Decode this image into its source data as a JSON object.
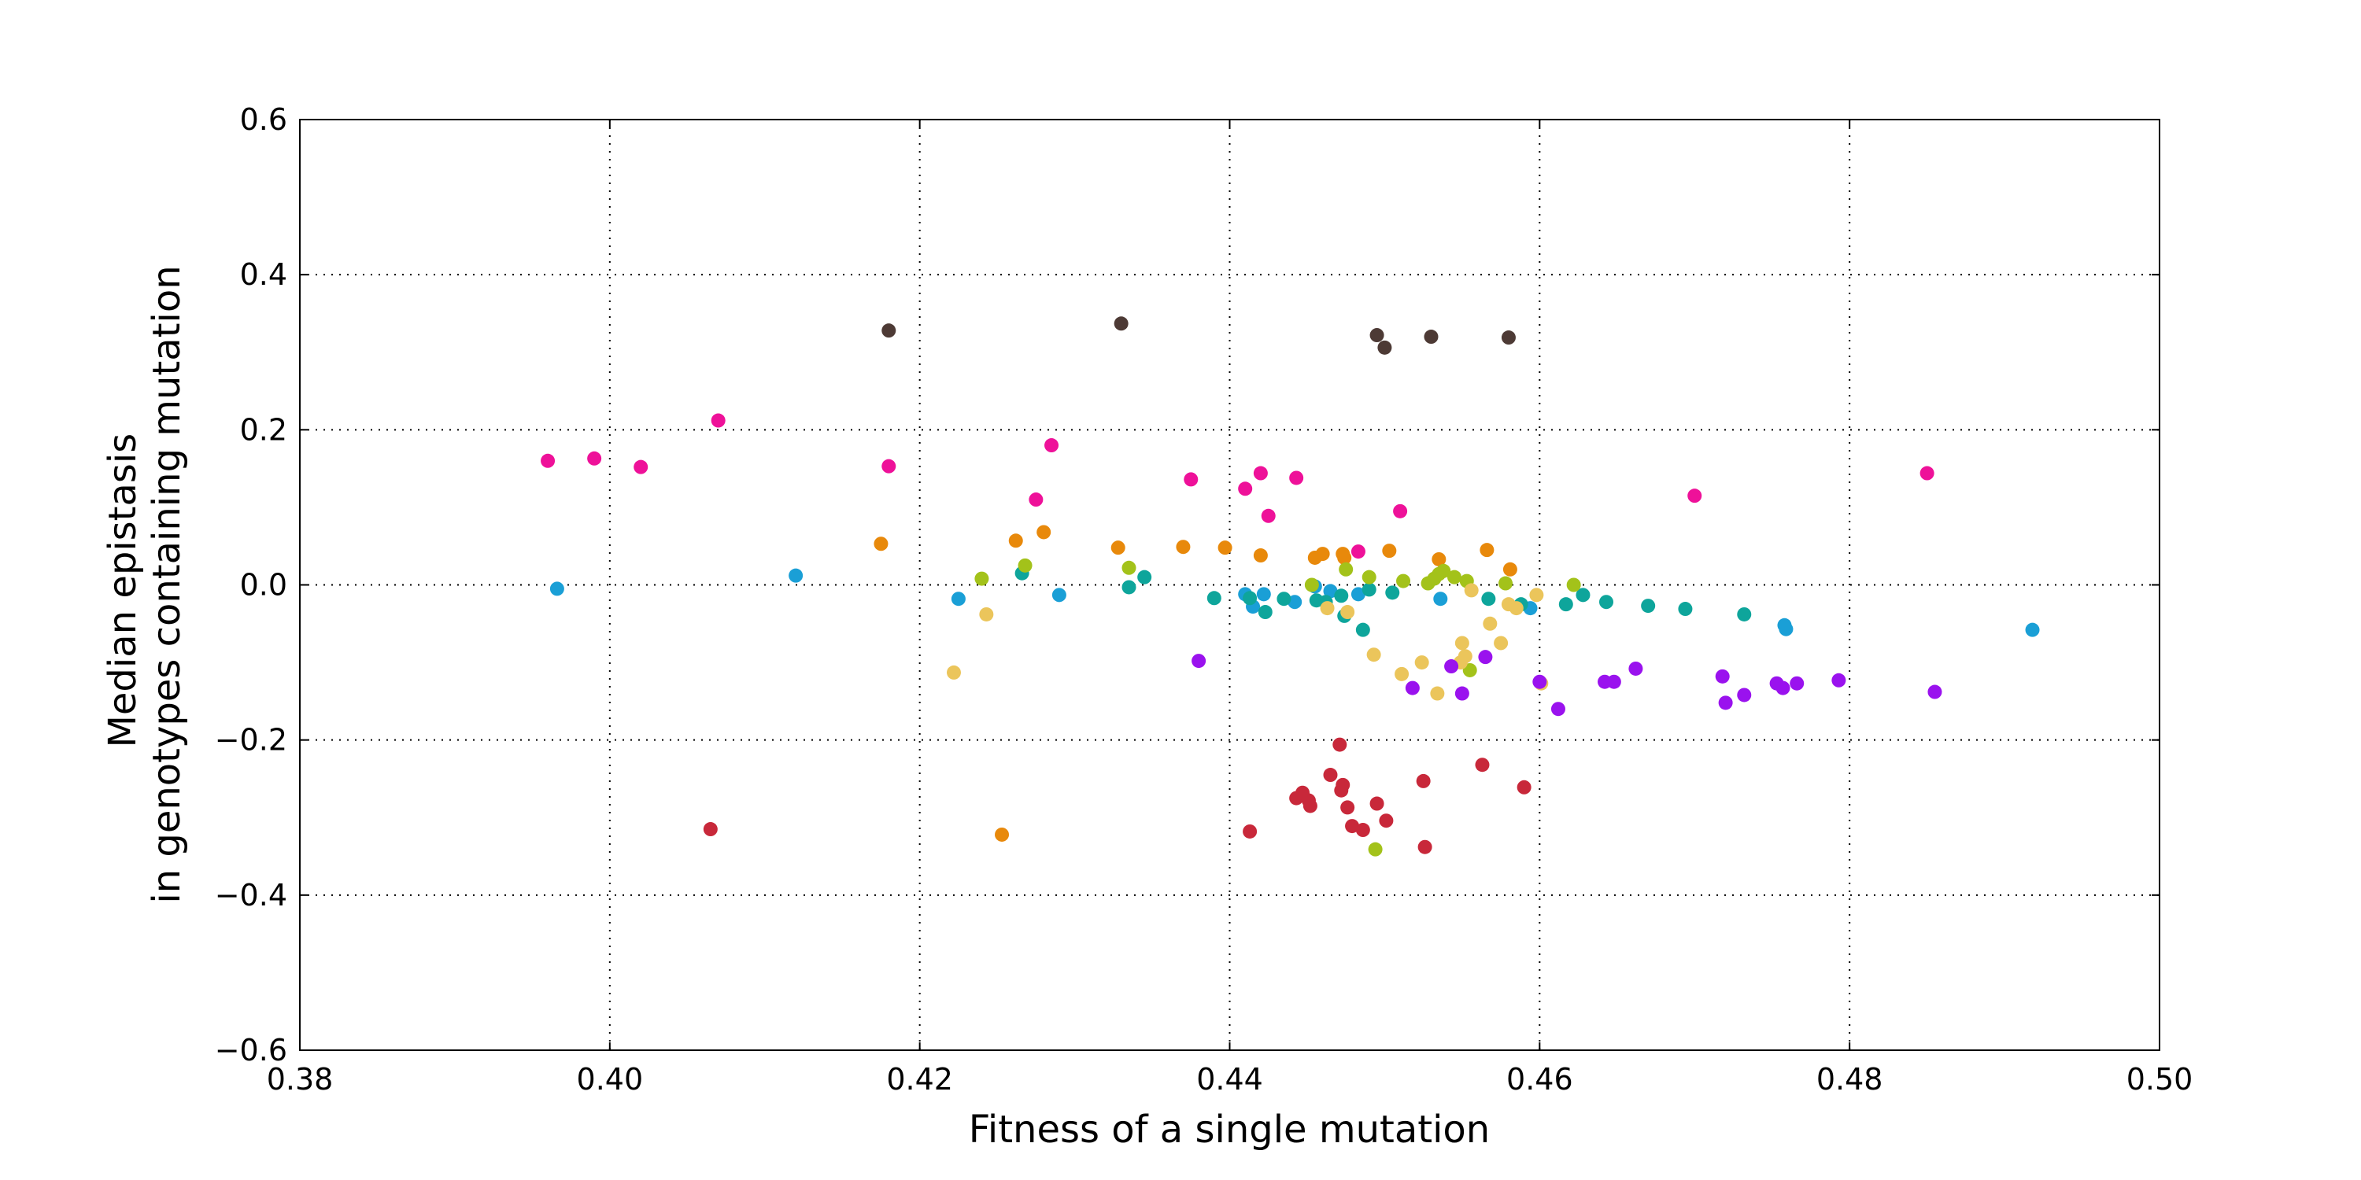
{
  "chart_data": {
    "type": "scatter",
    "title": "",
    "xlabel": "Fitness of a single mutation",
    "ylabel_lines": [
      "Median epistasis",
      "in genotypes containing mutation"
    ],
    "xlim": [
      0.38,
      0.5
    ],
    "ylim": [
      -0.6,
      0.6
    ],
    "x_ticks": [
      0.38,
      0.4,
      0.42,
      0.44,
      0.46,
      0.48,
      0.5
    ],
    "x_tick_labels": [
      "0.38",
      "0.40",
      "0.42",
      "0.44",
      "0.46",
      "0.48",
      "0.50"
    ],
    "y_ticks": [
      -0.6,
      -0.4,
      -0.2,
      0.0,
      0.2,
      0.4,
      0.6
    ],
    "y_tick_labels": [
      "−0.6",
      "−0.4",
      "−0.2",
      "0.0",
      "0.2",
      "0.4",
      "0.6"
    ],
    "grid": true,
    "legend": "none",
    "series": [
      {
        "color": "#4d3a35",
        "points": [
          [
            0.418,
            0.328
          ],
          [
            0.433,
            0.337
          ],
          [
            0.4495,
            0.322
          ],
          [
            0.45,
            0.306
          ],
          [
            0.453,
            0.32
          ],
          [
            0.458,
            0.319
          ]
        ]
      },
      {
        "color": "#ee1199",
        "points": [
          [
            0.396,
            0.16
          ],
          [
            0.399,
            0.163
          ],
          [
            0.402,
            0.152
          ],
          [
            0.407,
            0.212
          ],
          [
            0.418,
            0.153
          ],
          [
            0.4285,
            0.18
          ],
          [
            0.4275,
            0.11
          ],
          [
            0.4375,
            0.136
          ],
          [
            0.441,
            0.124
          ],
          [
            0.442,
            0.144
          ],
          [
            0.4425,
            0.089
          ],
          [
            0.4443,
            0.138
          ],
          [
            0.4483,
            0.043
          ],
          [
            0.451,
            0.095
          ],
          [
            0.47,
            0.115
          ],
          [
            0.485,
            0.144
          ]
        ]
      },
      {
        "color": "#e8890b",
        "points": [
          [
            0.4175,
            0.053
          ],
          [
            0.4262,
            0.057
          ],
          [
            0.428,
            0.068
          ],
          [
            0.4328,
            0.048
          ],
          [
            0.437,
            0.049
          ],
          [
            0.4397,
            0.048
          ],
          [
            0.442,
            0.038
          ],
          [
            0.4455,
            0.035
          ],
          [
            0.446,
            0.04
          ],
          [
            0.4473,
            0.04
          ],
          [
            0.4474,
            0.035
          ],
          [
            0.4503,
            0.044
          ],
          [
            0.4535,
            0.033
          ],
          [
            0.4566,
            0.045
          ],
          [
            0.4581,
            0.02
          ],
          [
            0.4253,
            -0.322
          ]
        ]
      },
      {
        "color": "#1a9fd6",
        "points": [
          [
            0.3966,
            -0.005
          ],
          [
            0.412,
            0.012
          ],
          [
            0.4225,
            -0.018
          ],
          [
            0.429,
            -0.013
          ],
          [
            0.441,
            -0.012
          ],
          [
            0.4415,
            -0.028
          ],
          [
            0.4422,
            -0.012
          ],
          [
            0.4442,
            -0.022
          ],
          [
            0.4455,
            -0.002
          ],
          [
            0.4465,
            -0.008
          ],
          [
            0.4483,
            -0.012
          ],
          [
            0.4536,
            -0.018
          ],
          [
            0.4594,
            -0.03
          ],
          [
            0.4758,
            -0.052
          ],
          [
            0.4759,
            -0.057
          ],
          [
            0.4918,
            -0.058
          ]
        ]
      },
      {
        "color": "#0ea59b",
        "points": [
          [
            0.4266,
            0.015
          ],
          [
            0.4335,
            -0.003
          ],
          [
            0.4345,
            0.01
          ],
          [
            0.439,
            -0.017
          ],
          [
            0.4413,
            -0.017
          ],
          [
            0.4423,
            -0.035
          ],
          [
            0.4435,
            -0.018
          ],
          [
            0.4456,
            -0.02
          ],
          [
            0.4462,
            -0.022
          ],
          [
            0.4472,
            -0.014
          ],
          [
            0.4474,
            -0.04
          ],
          [
            0.4486,
            -0.058
          ],
          [
            0.449,
            -0.006
          ],
          [
            0.4505,
            -0.01
          ],
          [
            0.4567,
            -0.018
          ],
          [
            0.4588,
            -0.025
          ],
          [
            0.4617,
            -0.025
          ],
          [
            0.4628,
            -0.013
          ],
          [
            0.4643,
            -0.022
          ],
          [
            0.467,
            -0.027
          ],
          [
            0.4694,
            -0.031
          ],
          [
            0.4732,
            -0.038
          ]
        ]
      },
      {
        "color": "#a3c21a",
        "points": [
          [
            0.424,
            0.008
          ],
          [
            0.4268,
            0.025
          ],
          [
            0.4335,
            0.022
          ],
          [
            0.4453,
            0.0
          ],
          [
            0.4475,
            0.02
          ],
          [
            0.449,
            0.01
          ],
          [
            0.4512,
            0.005
          ],
          [
            0.4528,
            0.002
          ],
          [
            0.4532,
            0.008
          ],
          [
            0.4535,
            0.014
          ],
          [
            0.4538,
            0.018
          ],
          [
            0.4545,
            0.01
          ],
          [
            0.4553,
            0.005
          ],
          [
            0.4578,
            0.002
          ],
          [
            0.4622,
            0.0
          ],
          [
            0.4555,
            -0.11
          ],
          [
            0.4494,
            -0.341
          ]
        ]
      },
      {
        "color": "#ebc55b",
        "points": [
          [
            0.4222,
            -0.113
          ],
          [
            0.4243,
            -0.038
          ],
          [
            0.4463,
            -0.03
          ],
          [
            0.4476,
            -0.035
          ],
          [
            0.4493,
            -0.09
          ],
          [
            0.4511,
            -0.115
          ],
          [
            0.4524,
            -0.1
          ],
          [
            0.4534,
            -0.14
          ],
          [
            0.4549,
            -0.1
          ],
          [
            0.455,
            -0.075
          ],
          [
            0.4552,
            -0.092
          ],
          [
            0.4556,
            -0.007
          ],
          [
            0.4568,
            -0.05
          ],
          [
            0.4575,
            -0.075
          ],
          [
            0.458,
            -0.025
          ],
          [
            0.4585,
            -0.03
          ],
          [
            0.4598,
            -0.013
          ],
          [
            0.4601,
            -0.127
          ]
        ]
      },
      {
        "color": "#9a12ee",
        "points": [
          [
            0.438,
            -0.098
          ],
          [
            0.4518,
            -0.133
          ],
          [
            0.4543,
            -0.105
          ],
          [
            0.455,
            -0.14
          ],
          [
            0.4565,
            -0.093
          ],
          [
            0.46,
            -0.125
          ],
          [
            0.4612,
            -0.16
          ],
          [
            0.4642,
            -0.125
          ],
          [
            0.4648,
            -0.125
          ],
          [
            0.4662,
            -0.108
          ],
          [
            0.4718,
            -0.118
          ],
          [
            0.472,
            -0.152
          ],
          [
            0.4732,
            -0.142
          ],
          [
            0.4753,
            -0.127
          ],
          [
            0.4757,
            -0.133
          ],
          [
            0.4766,
            -0.127
          ],
          [
            0.4793,
            -0.123
          ],
          [
            0.4855,
            -0.138
          ]
        ]
      },
      {
        "color": "#c8283a",
        "points": [
          [
            0.4065,
            -0.315
          ],
          [
            0.4413,
            -0.318
          ],
          [
            0.4443,
            -0.275
          ],
          [
            0.4447,
            -0.268
          ],
          [
            0.4451,
            -0.278
          ],
          [
            0.4452,
            -0.285
          ],
          [
            0.4465,
            -0.245
          ],
          [
            0.4471,
            -0.206
          ],
          [
            0.4472,
            -0.265
          ],
          [
            0.4473,
            -0.258
          ],
          [
            0.4476,
            -0.287
          ],
          [
            0.4479,
            -0.311
          ],
          [
            0.4486,
            -0.316
          ],
          [
            0.4495,
            -0.282
          ],
          [
            0.4501,
            -0.304
          ],
          [
            0.4525,
            -0.253
          ],
          [
            0.4526,
            -0.338
          ],
          [
            0.4563,
            -0.232
          ],
          [
            0.459,
            -0.261
          ]
        ]
      }
    ]
  }
}
